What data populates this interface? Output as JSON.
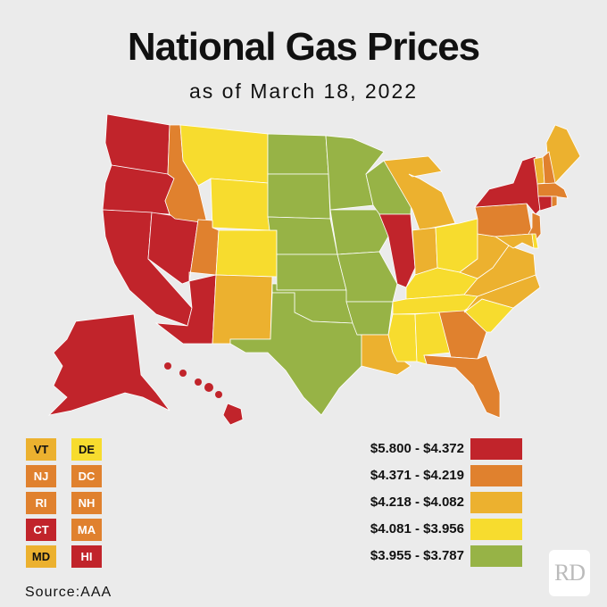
{
  "header": {
    "title": "National Gas Prices",
    "subtitle": "as of March 18, 2022"
  },
  "legend": [
    {
      "label": "$5.800 - $4.372",
      "color": "#c1242b"
    },
    {
      "label": "$4.371 - $4.219",
      "color": "#e0812e"
    },
    {
      "label": "$4.218 - $4.082",
      "color": "#ecb12f"
    },
    {
      "label": "$4.081 - $3.956",
      "color": "#f7dc2e"
    },
    {
      "label": "$3.955 - $3.787",
      "color": "#97b346"
    }
  ],
  "small_states": [
    {
      "abbr": "VT",
      "tier": 2
    },
    {
      "abbr": "DE",
      "tier": 3
    },
    {
      "abbr": "NJ",
      "tier": 1
    },
    {
      "abbr": "DC",
      "tier": 1
    },
    {
      "abbr": "RI",
      "tier": 1
    },
    {
      "abbr": "NH",
      "tier": 1
    },
    {
      "abbr": "CT",
      "tier": 0
    },
    {
      "abbr": "MA",
      "tier": 1
    },
    {
      "abbr": "MD",
      "tier": 2
    },
    {
      "abbr": "HI",
      "tier": 0
    }
  ],
  "state_tiers": {
    "WA": 0,
    "OR": 0,
    "CA": 0,
    "NV": 0,
    "AZ": 0,
    "IL": 0,
    "NY": 0,
    "CT": 0,
    "HI": 0,
    "AK": 0,
    "ID": 1,
    "UT": 1,
    "PA": 1,
    "GA": 1,
    "FL": 1,
    "NJ": 1,
    "RI": 1,
    "NH": 1,
    "MA": 1,
    "NM": 2,
    "MI": 2,
    "IN": 2,
    "WV": 2,
    "VA": 2,
    "NC": 2,
    "LA": 2,
    "ME": 2,
    "VT": 2,
    "MD": 2,
    "MT": 3,
    "WY": 3,
    "CO": 3,
    "DE": 3,
    "OH": 3,
    "KY": 3,
    "TN": 3,
    "MS": 3,
    "AL": 3,
    "SC": 3,
    "ND": 4,
    "SD": 4,
    "NE": 4,
    "KS": 4,
    "OK": 4,
    "TX": 4,
    "MN": 4,
    "IA": 4,
    "MO": 4,
    "AR": 4,
    "WI": 4
  },
  "source": "Source:AAA",
  "logo": "RD"
}
